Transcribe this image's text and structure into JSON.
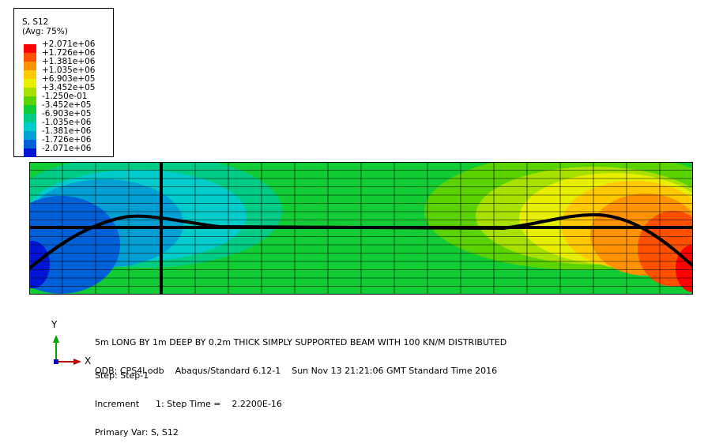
{
  "legend": {
    "title": "S, S12",
    "subtitle": "(Avg: 75%)",
    "ticks": [
      "+2.071e+06",
      "+1.726e+06",
      "+1.381e+06",
      "+1.035e+06",
      "+6.903e+05",
      "+3.452e+05",
      "-1.250e-01",
      "-3.452e+05",
      "-6.903e+05",
      "-1.035e+06",
      "-1.381e+06",
      "-1.726e+06",
      "-2.071e+06"
    ],
    "colors": [
      "#ff0000",
      "#ff5000",
      "#ff9200",
      "#ffc800",
      "#e8ee00",
      "#a8e000",
      "#5ad300",
      "#11cc35",
      "#00cc86",
      "#00cccc",
      "#009fd4",
      "#0060d8",
      "#0015d6"
    ]
  },
  "viewport": {
    "title_line": "5m LONG BY 1m DEEP BY 0.2m THICK SIMPLY SUPPORTED BEAM WITH 100 KN/M DISTRIBUTED",
    "odb_line": "ODB: CPS4I.odb    Abaqus/Standard 6.12-1    Sun Nov 13 21:21:06 GMT Standard Time 2016",
    "step_line": "Step: Step-1",
    "increment_line": "Increment      1: Step Time =    2.2200E-16",
    "primary_var_line": "Primary Var: S, S12"
  },
  "triad": {
    "y_label": "Y",
    "x_label": "X",
    "y_color": "#00a000",
    "x_color": "#c00000",
    "origin_color": "#0000c0"
  }
}
